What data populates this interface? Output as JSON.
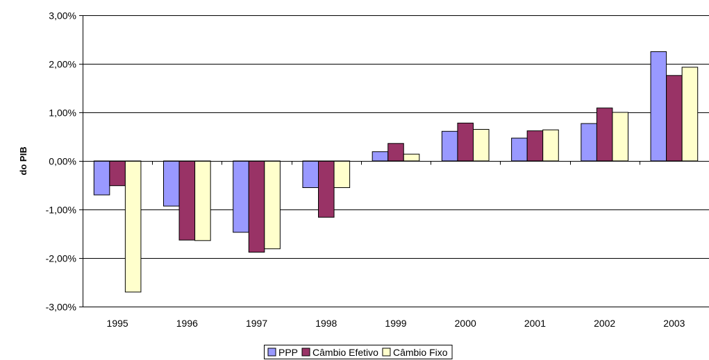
{
  "chart_data": {
    "type": "bar",
    "title": "",
    "xlabel": "",
    "ylabel": "do PIB",
    "ylim": [
      -0.03,
      0.03
    ],
    "y_ticks": [
      {
        "value": 0.03,
        "label": "3,00%"
      },
      {
        "value": 0.02,
        "label": "2,00%"
      },
      {
        "value": 0.01,
        "label": "1,00%"
      },
      {
        "value": 0.0,
        "label": "0,00%"
      },
      {
        "value": -0.01,
        "label": "-1,00%"
      },
      {
        "value": -0.02,
        "label": "-2,00%"
      },
      {
        "value": -0.03,
        "label": "-3,00%"
      }
    ],
    "grid": true,
    "legend_position": "bottom-center",
    "categories": [
      "1995",
      "1996",
      "1997",
      "1998",
      "1999",
      "2000",
      "2001",
      "2002",
      "2003"
    ],
    "series": [
      {
        "name": "PPP",
        "color": "#9999FF",
        "values": [
          -0.007,
          -0.0093,
          -0.0147,
          -0.0055,
          0.0019,
          0.0061,
          0.0047,
          0.0077,
          0.0225
        ]
      },
      {
        "name": "Câmbio Efetivo",
        "color": "#993366",
        "values": [
          -0.0051,
          -0.0163,
          -0.0188,
          -0.0116,
          0.0036,
          0.0078,
          0.0062,
          0.0109,
          0.0176
        ]
      },
      {
        "name": "Câmbio Fixo",
        "color": "#FFFFCC",
        "values": [
          -0.027,
          -0.0164,
          -0.0181,
          -0.0055,
          0.0014,
          0.0065,
          0.0064,
          0.01,
          0.0193
        ]
      }
    ]
  }
}
